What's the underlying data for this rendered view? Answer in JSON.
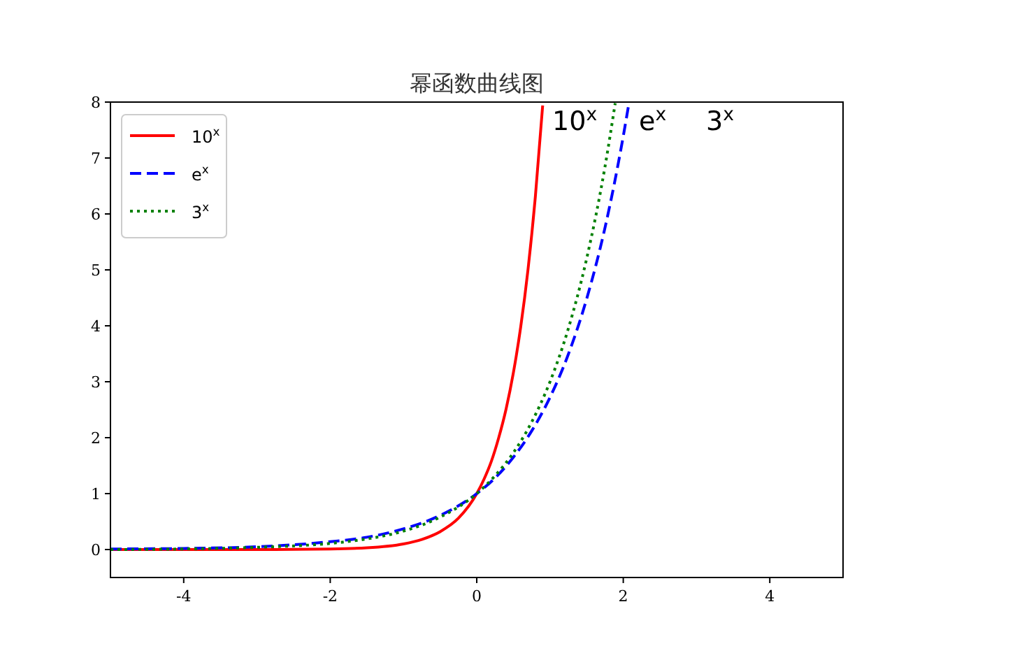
{
  "chart_data": {
    "type": "line",
    "title": "幂函数曲线图",
    "xlim": [
      -5,
      5
    ],
    "xticks": [
      -4,
      -2,
      0,
      2,
      4
    ],
    "ylim": [
      -0.5,
      8
    ],
    "yticks": [
      0,
      1,
      2,
      3,
      4,
      5,
      6,
      7,
      8
    ],
    "grid": false,
    "legend": "top left",
    "series": [
      {
        "name": "10$^{x}$",
        "color": "#ff0000",
        "line_style": "solid",
        "x": [
          -5,
          -4,
          -3,
          -2,
          -1.5,
          -1,
          -0.75,
          -0.5,
          -0.25,
          0,
          0.1,
          0.2,
          0.3,
          0.4,
          0.5,
          0.6,
          0.7,
          0.8,
          0.9
        ],
        "values": [
          0,
          0,
          0,
          0.01,
          0.03,
          0.1,
          0.18,
          0.32,
          0.56,
          1,
          1.26,
          1.58,
          2,
          2.51,
          3.16,
          3.98,
          5.01,
          6.31,
          7.94
        ]
      },
      {
        "name": "e$^{x}$",
        "color": "#0000ff",
        "line_style": "dashed",
        "x": [
          -5,
          -4,
          -3,
          -2,
          -1.5,
          -1,
          -0.5,
          0,
          0.25,
          0.5,
          0.75,
          1,
          1.25,
          1.5,
          1.75,
          2,
          2.08
        ],
        "values": [
          0.01,
          0.02,
          0.05,
          0.14,
          0.22,
          0.37,
          0.61,
          1,
          1.28,
          1.65,
          2.12,
          2.72,
          3.49,
          4.48,
          5.75,
          7.39,
          8
        ]
      },
      {
        "name": "3$^{x}$",
        "color": "#008000",
        "line_style": "dotted",
        "x": [
          -5,
          -4,
          -3,
          -2,
          -1.5,
          -1,
          -0.5,
          0,
          0.25,
          0.5,
          0.75,
          1,
          1.25,
          1.5,
          1.75,
          1.89
        ],
        "values": [
          0,
          0.01,
          0.04,
          0.11,
          0.19,
          0.33,
          0.58,
          1,
          1.32,
          1.73,
          2.28,
          3,
          3.95,
          5.2,
          6.84,
          7.98
        ]
      }
    ],
    "annotations": [
      "10$^{x}$",
      "e$^{x}$",
      "3$^{x}$"
    ]
  }
}
